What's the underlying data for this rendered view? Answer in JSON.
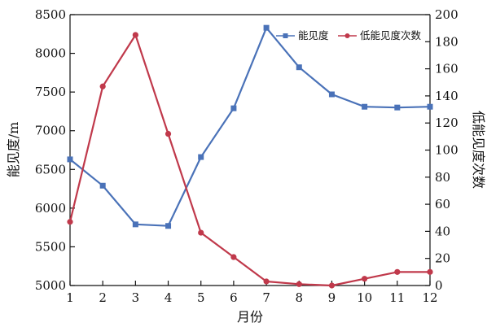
{
  "chart_data": {
    "type": "line",
    "x": [
      1,
      2,
      3,
      4,
      5,
      6,
      7,
      8,
      9,
      10,
      11,
      12
    ],
    "xlabel": "月份",
    "xlim": [
      1,
      12
    ],
    "x_ticks": [
      "1",
      "2",
      "3",
      "4",
      "5",
      "6",
      "7",
      "8",
      "9",
      "10",
      "11",
      "12"
    ],
    "ylabel_left": "能见度/m",
    "ylim_left": [
      5000,
      8500
    ],
    "y_ticks_left": [
      "5000",
      "5500",
      "6000",
      "6500",
      "7000",
      "7500",
      "8000",
      "8500"
    ],
    "ylabel_right": "低能见度次数",
    "ylim_right": [
      0,
      200
    ],
    "y_ticks_right": [
      "0",
      "20",
      "40",
      "60",
      "80",
      "100",
      "120",
      "140",
      "160",
      "180",
      "200"
    ],
    "grid": false,
    "legend_position": "top-right",
    "series": [
      {
        "name": "能见度",
        "axis": "left",
        "color": "#4a72b8",
        "marker": "square",
        "values": [
          6630,
          6290,
          5790,
          5770,
          6660,
          7290,
          8330,
          7820,
          7470,
          7310,
          7300,
          7310
        ]
      },
      {
        "name": "低能见度次数",
        "axis": "right",
        "color": "#c0394b",
        "marker": "circle",
        "values": [
          47,
          147,
          185,
          112,
          39,
          21,
          3,
          1,
          0,
          5,
          10,
          10
        ]
      }
    ]
  }
}
